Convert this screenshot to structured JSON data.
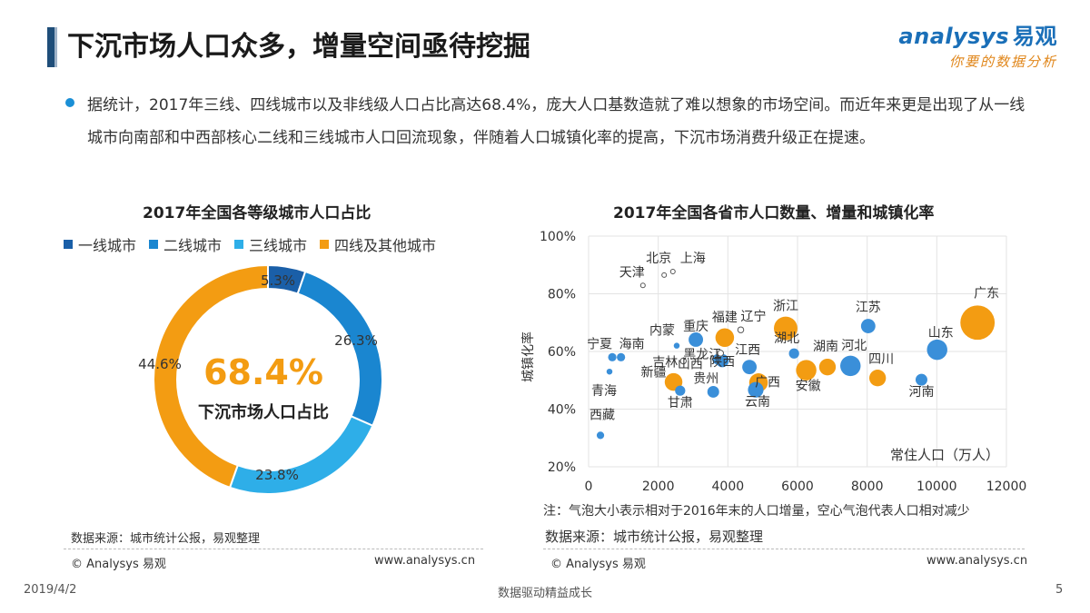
{
  "header": {
    "title": "下沉市场人口众多，增量空间亟待挖掘",
    "brand_name": "nalysys",
    "brand_initial": "a",
    "brand_cn": "易观",
    "brand_tagline": "你要的数据分析"
  },
  "intro_text": "据统计，2017年三线、四线城市以及非线级人口占比高达68.4%，庞大人口基数造就了难以想象的市场空间。而近年来更是出现了从一线城市向南部和中西部核心二线和三线城市人口回流现象，伴随着人口城镇化率的提高，下沉市场消费升级正在提速。",
  "colors": {
    "tier1": "#1a5fa8",
    "tier2": "#1a86d0",
    "tier3": "#2eaee8",
    "tier4": "#f39c12",
    "bubble_blue": "#3a8fd9",
    "bubble_orange": "#f39c12"
  },
  "chart_data": [
    {
      "type": "pie",
      "title": "2017年全国各等级城市人口占比",
      "categories": [
        "一线城市",
        "二线城市",
        "三线城市",
        "四线及其他城市"
      ],
      "values": [
        5.3,
        26.3,
        23.8,
        44.6
      ],
      "value_labels": [
        "5.3%",
        "26.3%",
        "23.8%",
        "44.6%"
      ],
      "center_value": "68.4%",
      "center_label": "下沉市场人口占比"
    },
    {
      "type": "scatter",
      "title": "2017年全国各省市人口数量、增量和城镇化率",
      "xlabel": "常住人口（万人）",
      "ylabel": "城镇化率",
      "xlim": [
        0,
        12000
      ],
      "ylim": [
        20,
        100
      ],
      "xticks": [
        "0",
        "2000",
        "4000",
        "6000",
        "8000",
        "10000",
        "12000"
      ],
      "yticks": [
        "20%",
        "40%",
        "60%",
        "80%",
        "100%"
      ],
      "points": [
        {
          "name": "广东",
          "x": 11170,
          "y": 70,
          "increase": 170,
          "color": "orange"
        },
        {
          "name": "山东",
          "x": 10010,
          "y": 60.6,
          "increase": 60,
          "color": "blue"
        },
        {
          "name": "河南",
          "x": 9560,
          "y": 50.2,
          "increase": 20,
          "color": "blue"
        },
        {
          "name": "四川",
          "x": 8300,
          "y": 50.8,
          "increase": 40,
          "color": "orange"
        },
        {
          "name": "江苏",
          "x": 8030,
          "y": 68.8,
          "increase": 30,
          "color": "blue"
        },
        {
          "name": "河北",
          "x": 7520,
          "y": 55,
          "increase": 60,
          "color": "blue"
        },
        {
          "name": "湖南",
          "x": 6860,
          "y": 54.6,
          "increase": 40,
          "color": "orange"
        },
        {
          "name": "安徽",
          "x": 6250,
          "y": 53.5,
          "increase": 60,
          "color": "orange"
        },
        {
          "name": "湖北",
          "x": 5900,
          "y": 59.3,
          "increase": 15,
          "color": "blue"
        },
        {
          "name": "浙江",
          "x": 5660,
          "y": 68,
          "increase": 80,
          "color": "orange"
        },
        {
          "name": "广西",
          "x": 4880,
          "y": 49.2,
          "increase": 50,
          "color": "orange"
        },
        {
          "name": "云南",
          "x": 4800,
          "y": 46.7,
          "increase": 35,
          "color": "blue"
        },
        {
          "name": "江西",
          "x": 4620,
          "y": 54.6,
          "increase": 30,
          "color": "blue"
        },
        {
          "name": "辽宁",
          "x": 4370,
          "y": 67.5,
          "increase": 5,
          "color": "hollow"
        },
        {
          "name": "福建",
          "x": 3910,
          "y": 64.8,
          "increase": 50,
          "color": "orange"
        },
        {
          "name": "陕西",
          "x": 3840,
          "y": 56.8,
          "increase": 25,
          "color": "blue"
        },
        {
          "name": "黑龙江",
          "x": 3790,
          "y": 59.4,
          "increase": 5,
          "color": "hollow"
        },
        {
          "name": "重庆",
          "x": 3080,
          "y": 64.1,
          "increase": 30,
          "color": "blue"
        },
        {
          "name": "贵州",
          "x": 3580,
          "y": 46,
          "increase": 20,
          "color": "blue"
        },
        {
          "name": "山西",
          "x": 3700,
          "y": 57.3,
          "increase": 15,
          "color": "blue"
        },
        {
          "name": "内蒙",
          "x": 2530,
          "y": 62,
          "increase": 5,
          "color": "blue"
        },
        {
          "name": "吉林",
          "x": 2720,
          "y": 56.7,
          "increase": 5,
          "color": "hollow"
        },
        {
          "name": "甘肃",
          "x": 2630,
          "y": 46.4,
          "increase": 15,
          "color": "blue"
        },
        {
          "name": "新疆",
          "x": 2440,
          "y": 49.4,
          "increase": 45,
          "color": "orange"
        },
        {
          "name": "上海",
          "x": 2420,
          "y": 87.7,
          "increase": 3,
          "color": "hollow"
        },
        {
          "name": "北京",
          "x": 2170,
          "y": 86.5,
          "increase": 3,
          "color": "hollow"
        },
        {
          "name": "天津",
          "x": 1560,
          "y": 82.9,
          "increase": 3,
          "color": "hollow"
        },
        {
          "name": "海南",
          "x": 930,
          "y": 58,
          "increase": 10,
          "color": "blue"
        },
        {
          "name": "宁夏",
          "x": 680,
          "y": 58,
          "increase": 10,
          "color": "blue"
        },
        {
          "name": "青海",
          "x": 600,
          "y": 53,
          "increase": 5,
          "color": "blue"
        },
        {
          "name": "西藏",
          "x": 340,
          "y": 30.9,
          "increase": 8,
          "color": "blue"
        }
      ]
    }
  ],
  "bubble_note": "注：气泡大小表示相对于2016年末的人口增量，空心气泡代表人口相对减少",
  "footer": {
    "source_left": "数据来源：城市统计公报，易观整理",
    "source_right": "数据来源：城市统计公报，易观整理",
    "copyright": "© Analysys 易观",
    "url": "www.analysys.cn",
    "date": "2019/4/2",
    "slogan": "数据驱动精益成长",
    "page": "5"
  }
}
